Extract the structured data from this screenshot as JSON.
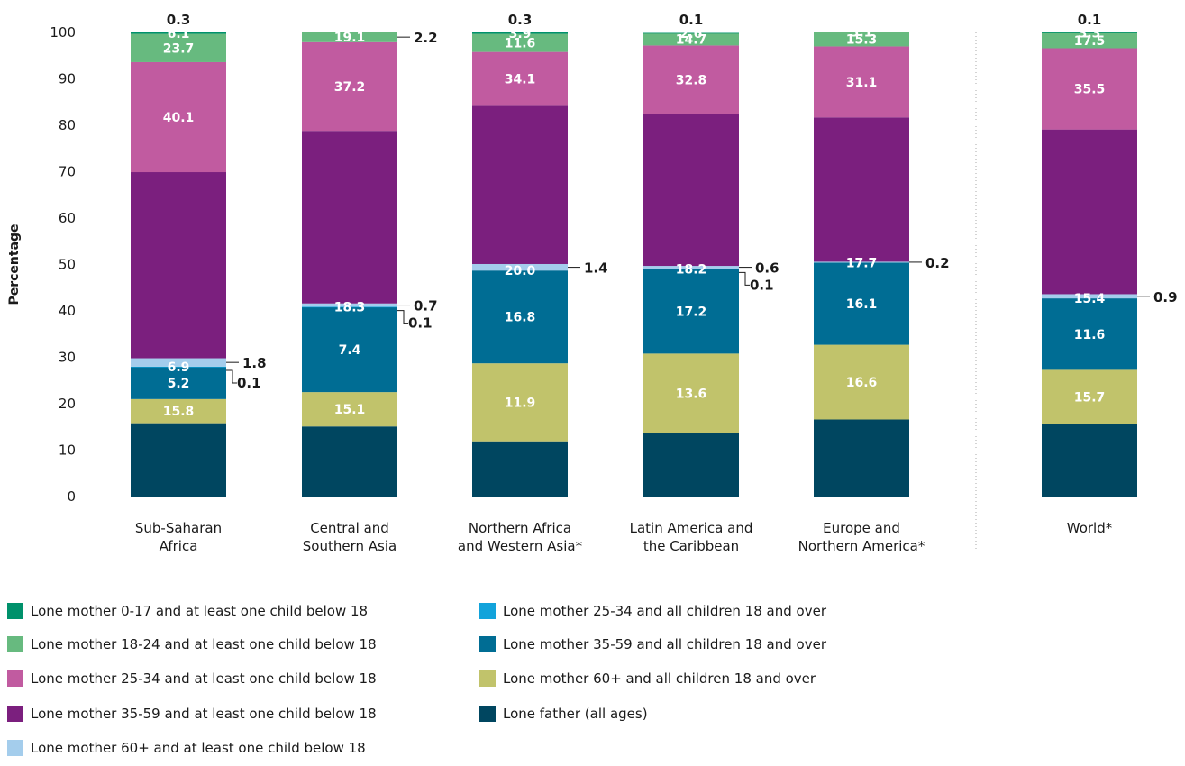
{
  "chart_data": {
    "type": "bar",
    "stacked": true,
    "ylabel": "Percentage",
    "ylim": [
      0,
      100
    ],
    "yticks": [
      0,
      10,
      20,
      30,
      40,
      50,
      60,
      70,
      80,
      90,
      100
    ],
    "categories": [
      [
        "Sub-Saharan",
        "Africa"
      ],
      [
        "Central and",
        "Southern Asia"
      ],
      [
        "Northern Africa",
        "and Western Asia*"
      ],
      [
        "Latin America and",
        "the Caribbean"
      ],
      [
        "Europe and",
        "Northern America*"
      ],
      [
        "World*"
      ]
    ],
    "series": [
      {
        "name": "Lone father (all ages)",
        "color": "#004660",
        "values": [
          15.8,
          15.1,
          11.9,
          13.6,
          16.6,
          15.7
        ]
      },
      {
        "name": "Lone mother 60+ and all children 18 and over",
        "color": "#c1c36b",
        "values": [
          5.2,
          7.4,
          16.8,
          17.2,
          16.1,
          11.6
        ]
      },
      {
        "name": "Lone mother 35-59 and all children 18 and over",
        "color": "#006d94",
        "values": [
          6.9,
          18.3,
          20.0,
          18.2,
          17.7,
          15.4
        ]
      },
      {
        "name": "Lone mother 25-34 and all children 18 and over",
        "color": "#12a3db",
        "values": [
          0.1,
          0.1,
          0.0,
          0.1,
          0.0,
          0.0
        ]
      },
      {
        "name": "Lone mother 60+ and at least one child below 18",
        "color": "#a4cdec",
        "values": [
          1.8,
          0.7,
          1.4,
          0.6,
          0.2,
          0.9
        ]
      },
      {
        "name": "Lone mother 35-59 and at least one child below 18",
        "color": "#7b1f7e",
        "values": [
          40.1,
          37.2,
          34.1,
          32.8,
          31.1,
          35.5
        ]
      },
      {
        "name": "Lone mother 25-34 and at least one child below 18",
        "color": "#c15ba0",
        "values": [
          23.7,
          19.1,
          11.6,
          14.7,
          15.3,
          17.5
        ]
      },
      {
        "name": "Lone mother 18-24 and at least one child below 18",
        "color": "#67ba7f",
        "values": [
          6.1,
          2.2,
          3.9,
          2.6,
          3.1,
          3.3
        ]
      },
      {
        "name": "Lone mother 0-17 and at least one child below 18",
        "color": "#00916b",
        "values": [
          0.3,
          0.0,
          0.3,
          0.1,
          0.0,
          0.1
        ]
      }
    ],
    "label_texts": {
      "1": [
        "15.8",
        "15.1",
        "11.9",
        "13.6",
        "16.6",
        "15.7"
      ],
      "2": [
        "5.2",
        "7.4",
        "16.8",
        "17.2",
        "16.1",
        "11.6"
      ],
      "3": [
        "6.9",
        "18.3",
        "20.0",
        "18.2",
        "17.7",
        "15.4"
      ],
      "6": [
        "40.1",
        "37.2",
        "34.1",
        "32.8",
        "31.1",
        "35.5"
      ],
      "7": [
        "23.7",
        "19.1",
        "11.6",
        "14.7",
        "15.3",
        "17.5"
      ],
      "8": [
        "6.1",
        "",
        "3.9",
        "2.6",
        "3.1",
        "3.3"
      ]
    },
    "callouts": [
      {
        "text": "0.3",
        "col": 0,
        "kind": "top"
      },
      {
        "text": "0.3",
        "col": 2,
        "kind": "top"
      },
      {
        "text": "0.1",
        "col": 3,
        "kind": "top"
      },
      {
        "text": "0.1",
        "col": 5,
        "kind": "top"
      },
      {
        "text": "2.2",
        "col": 1,
        "kind": "side",
        "series": 7
      },
      {
        "text": "1.8",
        "col": 0,
        "kind": "side",
        "series": 4
      },
      {
        "text": "0.1",
        "col": 0,
        "kind": "hook",
        "series": 3
      },
      {
        "text": "0.7",
        "col": 1,
        "kind": "side",
        "series": 4
      },
      {
        "text": "0.1",
        "col": 1,
        "kind": "hook",
        "series": 3
      },
      {
        "text": "1.4",
        "col": 2,
        "kind": "side",
        "series": 4
      },
      {
        "text": "0.6",
        "col": 3,
        "kind": "side",
        "series": 4
      },
      {
        "text": "0.1",
        "col": 3,
        "kind": "hook",
        "series": 3
      },
      {
        "text": "0.2",
        "col": 4,
        "kind": "side",
        "series": 4
      },
      {
        "text": "0.9",
        "col": 5,
        "kind": "side",
        "series": 4
      }
    ],
    "legend": [
      "Lone mother 0-17 and at least one child below 18",
      "Lone mother 18-24 and at least one child below 18",
      "Lone mother 25-34 and at least one child below 18",
      "Lone mother 35-59 and at least one child below 18",
      "Lone mother 60+ and at least one child below 18",
      "Lone mother 25-34 and all children 18 and over",
      "Lone mother 35-59 and all children 18 and over",
      "Lone mother 60+ and all children 18 and over",
      "Lone father (all ages)"
    ],
    "legend_position": "bottom",
    "grid": false
  }
}
